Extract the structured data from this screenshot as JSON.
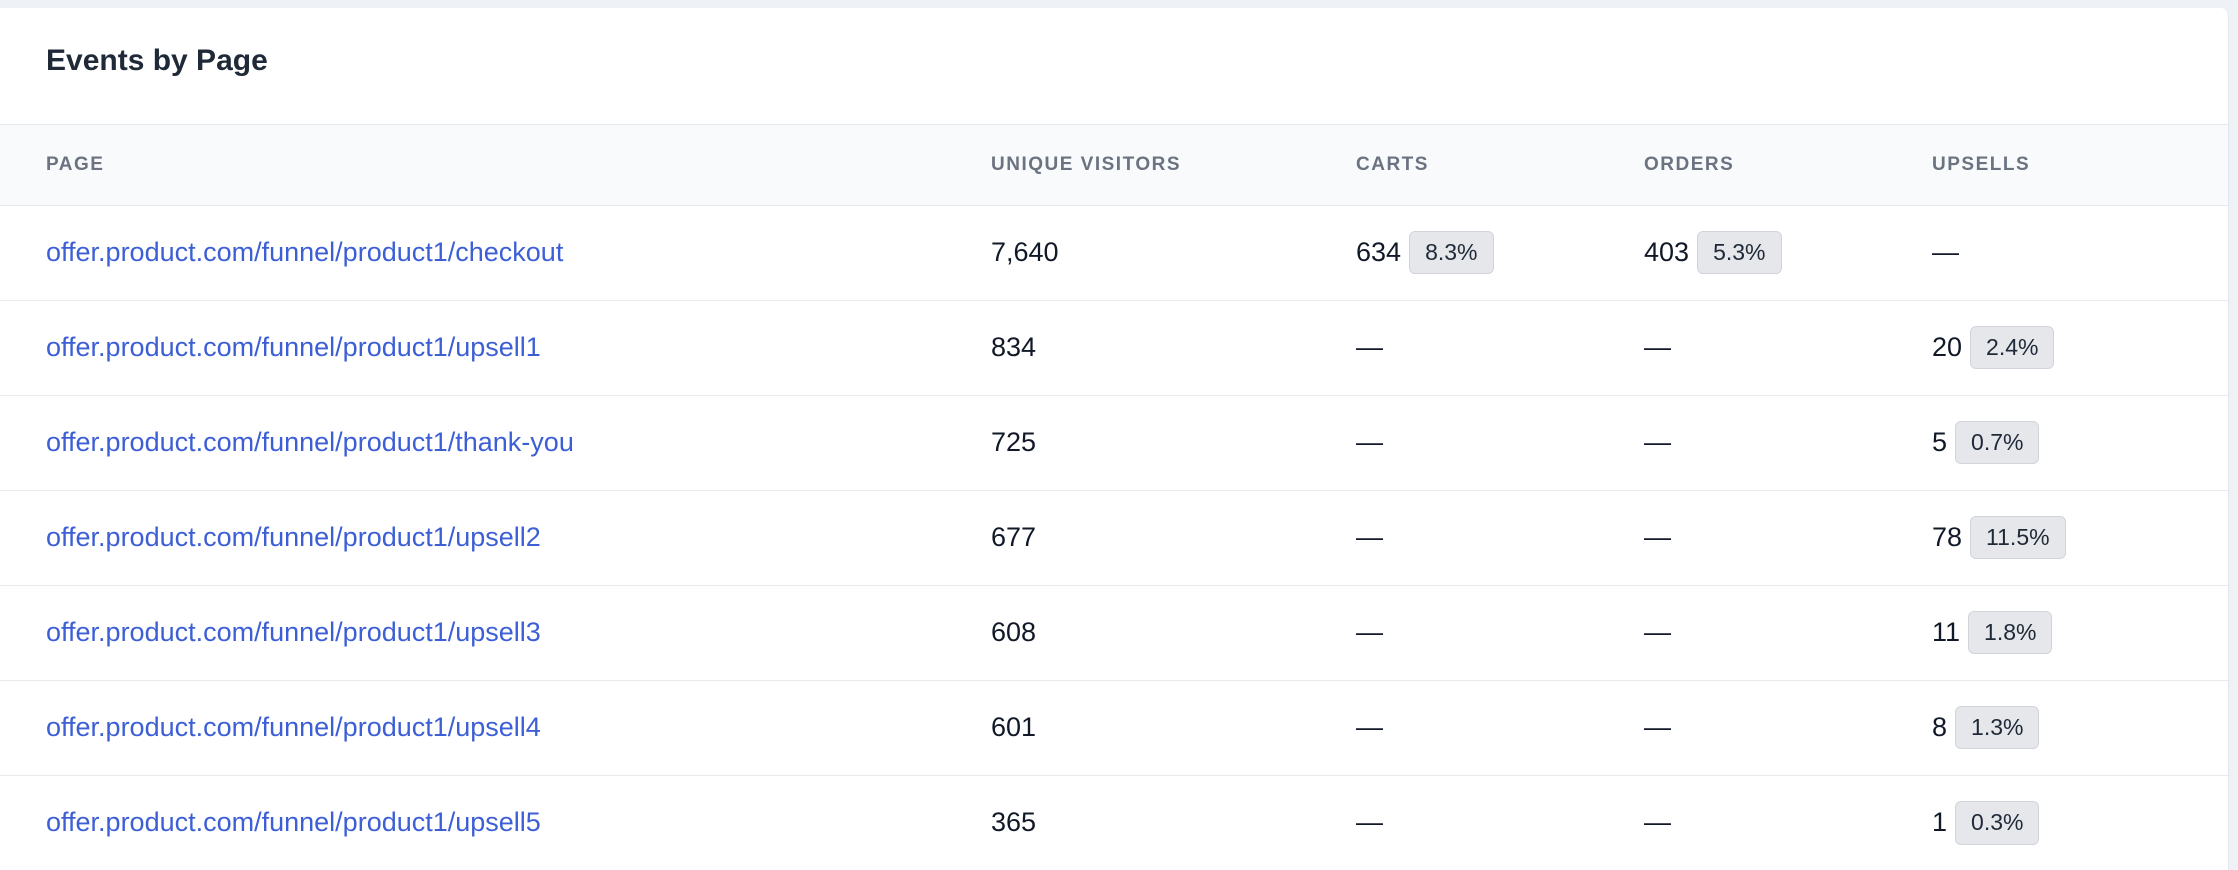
{
  "panel": {
    "title": "Events by Page"
  },
  "table": {
    "headers": {
      "page": "PAGE",
      "unique_visitors": "UNIQUE VISITORS",
      "carts": "CARTS",
      "orders": "ORDERS",
      "upsells": "UPSELLS"
    },
    "rows": [
      {
        "page": "offer.product.com/funnel/product1/checkout",
        "unique_visitors": "7,640",
        "carts": {
          "value": "634",
          "pct": "8.3%"
        },
        "orders": {
          "value": "403",
          "pct": "5.3%"
        },
        "upsells": {
          "value": "—",
          "pct": null
        }
      },
      {
        "page": "offer.product.com/funnel/product1/upsell1",
        "unique_visitors": "834",
        "carts": {
          "value": "—",
          "pct": null
        },
        "orders": {
          "value": "—",
          "pct": null
        },
        "upsells": {
          "value": "20",
          "pct": "2.4%"
        }
      },
      {
        "page": "offer.product.com/funnel/product1/thank-you",
        "unique_visitors": "725",
        "carts": {
          "value": "—",
          "pct": null
        },
        "orders": {
          "value": "—",
          "pct": null
        },
        "upsells": {
          "value": "5",
          "pct": "0.7%"
        }
      },
      {
        "page": "offer.product.com/funnel/product1/upsell2",
        "unique_visitors": "677",
        "carts": {
          "value": "—",
          "pct": null
        },
        "orders": {
          "value": "—",
          "pct": null
        },
        "upsells": {
          "value": "78",
          "pct": "11.5%"
        }
      },
      {
        "page": "offer.product.com/funnel/product1/upsell3",
        "unique_visitors": "608",
        "carts": {
          "value": "—",
          "pct": null
        },
        "orders": {
          "value": "—",
          "pct": null
        },
        "upsells": {
          "value": "11",
          "pct": "1.8%"
        }
      },
      {
        "page": "offer.product.com/funnel/product1/upsell4",
        "unique_visitors": "601",
        "carts": {
          "value": "—",
          "pct": null
        },
        "orders": {
          "value": "—",
          "pct": null
        },
        "upsells": {
          "value": "8",
          "pct": "1.3%"
        }
      },
      {
        "page": "offer.product.com/funnel/product1/upsell5",
        "unique_visitors": "365",
        "carts": {
          "value": "—",
          "pct": null
        },
        "orders": {
          "value": "—",
          "pct": null
        },
        "upsells": {
          "value": "1",
          "pct": "0.3%"
        }
      }
    ]
  }
}
